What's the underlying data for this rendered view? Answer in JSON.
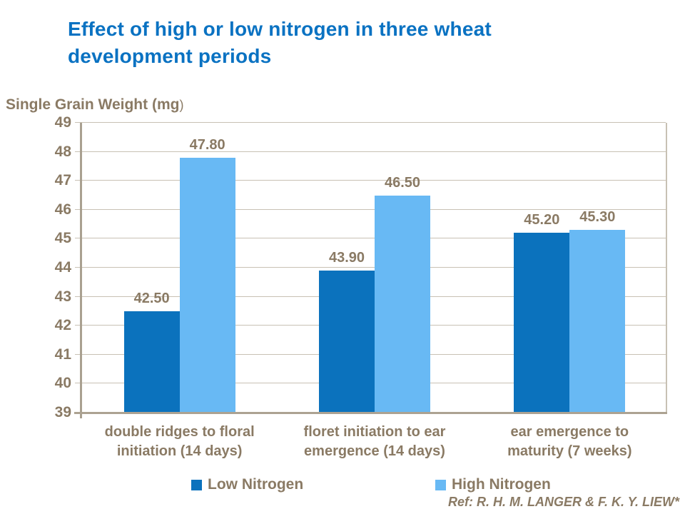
{
  "title": {
    "line1": "Effect of high or low nitrogen in three wheat",
    "line2": "development periods"
  },
  "y_axis_title": {
    "main": "Single Grain Weight (mg",
    "suffix": ")"
  },
  "chart_data": {
    "type": "bar",
    "title": "Effect of high or low nitrogen in three wheat development periods",
    "ylabel": "Single Grain Weight (mg)",
    "categories": [
      "double ridges to floral initiation (14 days)",
      "floret initiation to ear emergence (14 days)",
      "ear emergence to maturity (7 weeks)"
    ],
    "category_lines": [
      [
        "double ridges to floral",
        "initiation (14 days)"
      ],
      [
        "floret initiation to ear",
        "emergence (14 days)"
      ],
      [
        "ear emergence to",
        "maturity (7 weeks)"
      ]
    ],
    "series": [
      {
        "name": "Low Nitrogen",
        "color": "#0b72bd",
        "values": [
          42.5,
          43.9,
          45.2
        ],
        "labels": [
          "42.50",
          "43.90",
          "45.20"
        ]
      },
      {
        "name": "High Nitrogen",
        "color": "#68b9f4",
        "values": [
          47.8,
          46.5,
          45.3
        ],
        "labels": [
          "47.80",
          "46.50",
          "45.30"
        ]
      }
    ],
    "ylim": [
      39,
      49
    ],
    "yticks": [
      39,
      40,
      41,
      42,
      43,
      44,
      45,
      46,
      47,
      48,
      49
    ],
    "grid": true,
    "legend_position": "bottom"
  },
  "legend": {
    "items": [
      {
        "label": "Low Nitrogen",
        "color": "#0b72bd"
      },
      {
        "label": "High Nitrogen",
        "color": "#68b9f4"
      }
    ]
  },
  "footer": {
    "reference": "Ref: R. H. M. LANGER & F. K. Y. LIEW*"
  },
  "colors": {
    "title": "#0a72c2",
    "text": "#8a7a64",
    "grid": "#c8c1b4",
    "axis": "#a9a090",
    "series_low": "#0b72bd",
    "series_high": "#68b9f4"
  }
}
